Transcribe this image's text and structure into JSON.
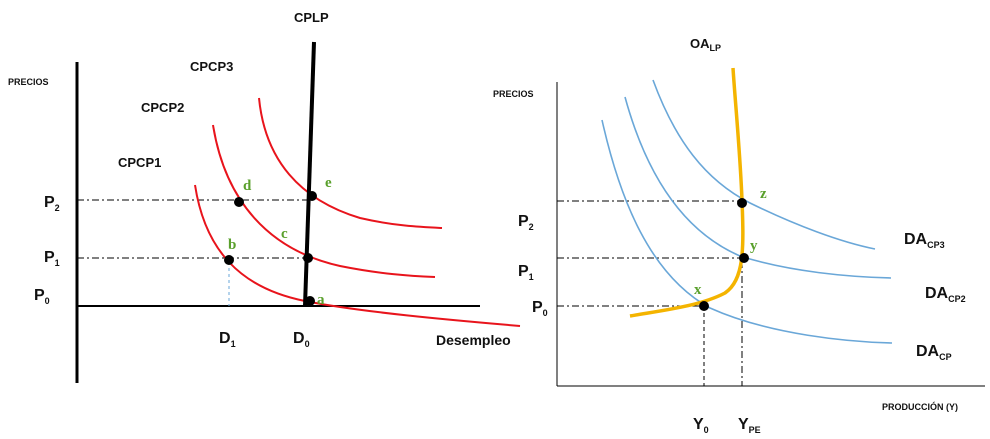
{
  "colors": {
    "red": "#e8141c",
    "blue": "#6aa7d8",
    "orange": "#f4b400",
    "green": "#5aa02c",
    "black": "#000000"
  },
  "left": {
    "ylabel": "PRECIOS",
    "cplp": "CPLP",
    "curves": [
      "CPCP3",
      "CPCP2",
      "CPCP1"
    ],
    "ticks": {
      "p0": "P",
      "p0_sub": "0",
      "p1": "P",
      "p1_sub": "1",
      "p2": "P",
      "p2_sub": "2"
    },
    "d1": "D",
    "d1_sub": "1",
    "d0": "D",
    "d0_sub": "0",
    "xlabel": "Desempleo",
    "points": {
      "a": "a",
      "b": "b",
      "c": "c",
      "d": "d",
      "e": "e"
    }
  },
  "right": {
    "ylabel": "PRECIOS",
    "oa": "OA",
    "oa_sub": "LP",
    "ticks": {
      "p0": "P",
      "p0_sub": "0",
      "p1": "P",
      "p1_sub": "1",
      "p2": "P",
      "p2_sub": "2"
    },
    "da3": "DA",
    "da3_sub": "CP3",
    "da2": "DA",
    "da2_sub": "CP2",
    "da1": "DA",
    "da1_sub": "CP",
    "y0": "Y",
    "y0_sub": "0",
    "ype": "Y",
    "ype_sub": "PE",
    "xlabel": "PRODUCCIÓN (Y)",
    "points": {
      "x": "x",
      "y": "y",
      "z": "z"
    }
  }
}
